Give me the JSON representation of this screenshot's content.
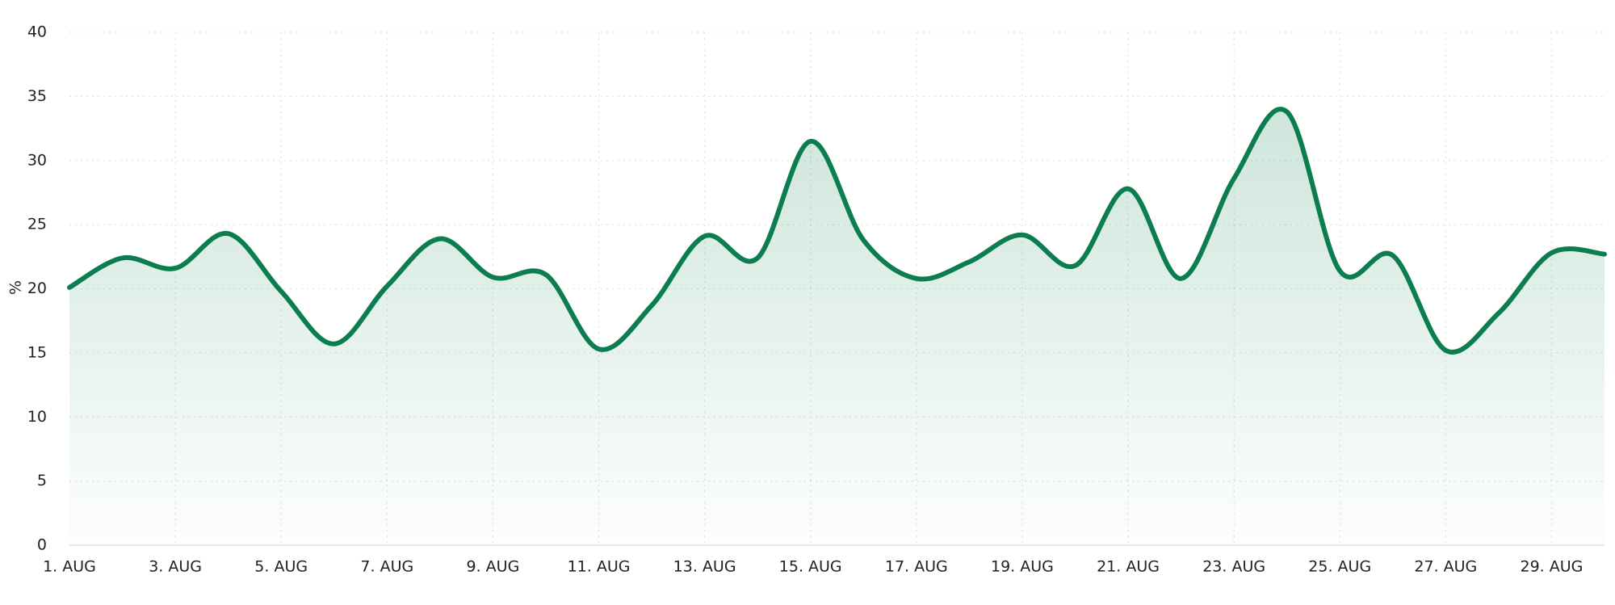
{
  "chart_data": {
    "type": "area",
    "ylabel": "%",
    "categories": [
      "1. AUG",
      null,
      "3. AUG",
      null,
      "5. AUG",
      null,
      "7. AUG",
      null,
      "9. AUG",
      null,
      "11. AUG",
      null,
      "13. AUG",
      null,
      "15. AUG",
      null,
      "17. AUG",
      null,
      "19. AUG",
      null,
      "21. AUG",
      null,
      "23. AUG",
      null,
      "25. AUG",
      null,
      "27. AUG",
      null,
      "29. AUG",
      null
    ],
    "values": [
      20.1,
      22.4,
      21.6,
      24.3,
      19.8,
      15.7,
      20.2,
      23.9,
      20.9,
      21.1,
      15.3,
      18.7,
      24.1,
      22.4,
      31.5,
      23.8,
      20.8,
      22.1,
      24.2,
      21.8,
      27.8,
      20.8,
      28.6,
      33.8,
      21.4,
      22.6,
      15.2,
      18.1,
      22.8,
      22.7
    ],
    "color": "#0b7d4e",
    "ylim": [
      0,
      40
    ],
    "yticks": [
      0,
      5,
      10,
      15,
      20,
      25,
      30,
      35,
      40
    ],
    "grid": true
  }
}
